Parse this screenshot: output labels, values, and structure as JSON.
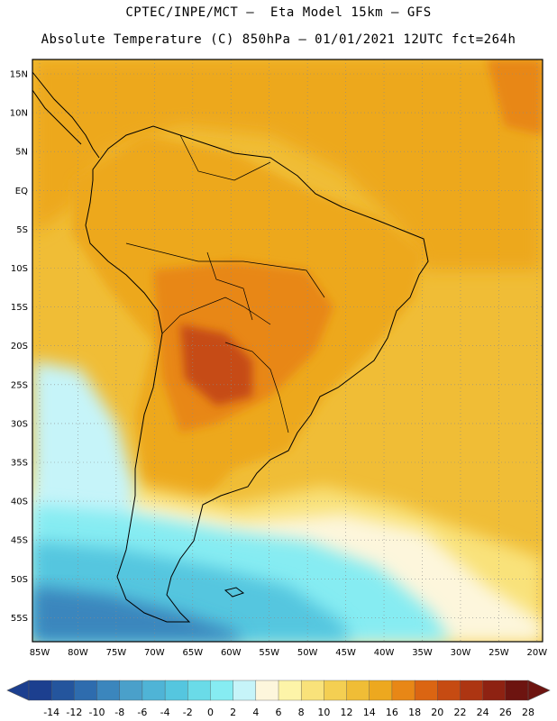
{
  "header": {
    "line1": "CPTEC/INPE/MCT –  Eta Model 15km – GFS",
    "line2": "Absolute Temperature (C) 850hPa – 01/01/2021 12UTC fct=264h"
  },
  "map": {
    "lat_labels": [
      "15N",
      "10N",
      "5N",
      "EQ",
      "5S",
      "10S",
      "15S",
      "20S",
      "25S",
      "30S",
      "35S",
      "40S",
      "45S",
      "50S",
      "55S"
    ],
    "lon_labels": [
      "85W",
      "80W",
      "75W",
      "70W",
      "65W",
      "60W",
      "55W",
      "50W",
      "45W",
      "40W",
      "35W",
      "30W",
      "25W",
      "20W"
    ]
  },
  "colorbar": {
    "labels": [
      "-14",
      "-12",
      "-10",
      "-8",
      "-6",
      "-4",
      "-2",
      "0",
      "2",
      "4",
      "6",
      "8",
      "10",
      "12",
      "14",
      "16",
      "18",
      "20",
      "22",
      "24",
      "26",
      "28"
    ],
    "colors": [
      "#1c3f8f",
      "#24559d",
      "#2e6cae",
      "#3b86bd",
      "#4aa0ca",
      "#4fb4d6",
      "#55c6df",
      "#6adbe8",
      "#86ecf2",
      "#c6f4f9",
      "#fdf6dc",
      "#fdf4a8",
      "#f9e27a",
      "#f4cf52",
      "#f0bd36",
      "#eda81f",
      "#e88716",
      "#db6512",
      "#c64b12",
      "#ad3512",
      "#8e2212",
      "#6d1410"
    ]
  },
  "palette": {
    "land_border": "#000000",
    "grid": "#8a8a8a"
  }
}
